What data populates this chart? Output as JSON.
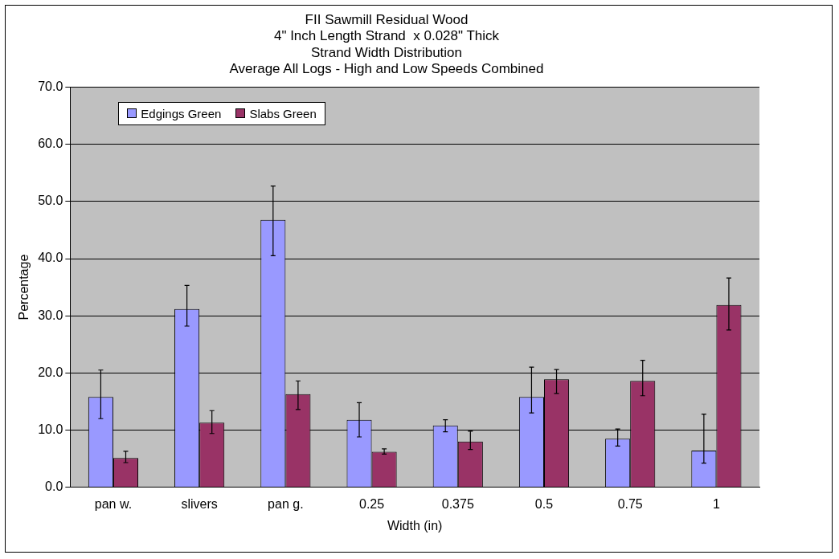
{
  "chart_data": {
    "type": "bar",
    "title": "FII Sawmill Residual Wood\n4\" Inch Length Strand  x 0.028\" Thick\nStrand Width Distribution\nAverage All Logs - High and Low Speeds Combined",
    "xlabel": "Width (in)",
    "ylabel": "Percentage",
    "categories": [
      "pan w.",
      "slivers",
      "pan g.",
      "0.25",
      "0.375",
      "0.5",
      "0.75",
      "1"
    ],
    "series": [
      {
        "name": "Edgings Green",
        "color": "#9999ff",
        "values": [
          15.8,
          31.2,
          46.8,
          11.8,
          10.8,
          15.8,
          8.5,
          6.4
        ],
        "errors": [
          [
            12.0,
            20.5
          ],
          [
            28.2,
            35.3
          ],
          [
            40.5,
            52.7
          ],
          [
            8.8,
            14.8
          ],
          [
            9.7,
            11.8
          ],
          [
            13.0,
            21.0
          ],
          [
            7.2,
            10.2
          ],
          [
            4.2,
            12.8
          ]
        ]
      },
      {
        "name": "Slabs Green",
        "color": "#993366",
        "values": [
          5.1,
          11.3,
          16.3,
          6.2,
          8.0,
          18.9,
          18.6,
          31.9
        ],
        "errors": [
          [
            4.3,
            6.3
          ],
          [
            9.4,
            13.4
          ],
          [
            13.6,
            18.6
          ],
          [
            5.8,
            6.7
          ],
          [
            6.6,
            9.8
          ],
          [
            16.4,
            20.6
          ],
          [
            16.0,
            22.2
          ],
          [
            27.5,
            36.6
          ]
        ]
      }
    ],
    "ylim": [
      0,
      70
    ],
    "yticks": [
      {
        "value": 0,
        "label": "0.0"
      },
      {
        "value": 10,
        "label": "10.0"
      },
      {
        "value": 20,
        "label": "20.0"
      },
      {
        "value": 30,
        "label": "30.0"
      },
      {
        "value": 40,
        "label": "40.0"
      },
      {
        "value": 50,
        "label": "50.0"
      },
      {
        "value": 60,
        "label": "60.0"
      },
      {
        "value": 70,
        "label": "70.0"
      }
    ],
    "grid": "y",
    "legend": "top left"
  }
}
